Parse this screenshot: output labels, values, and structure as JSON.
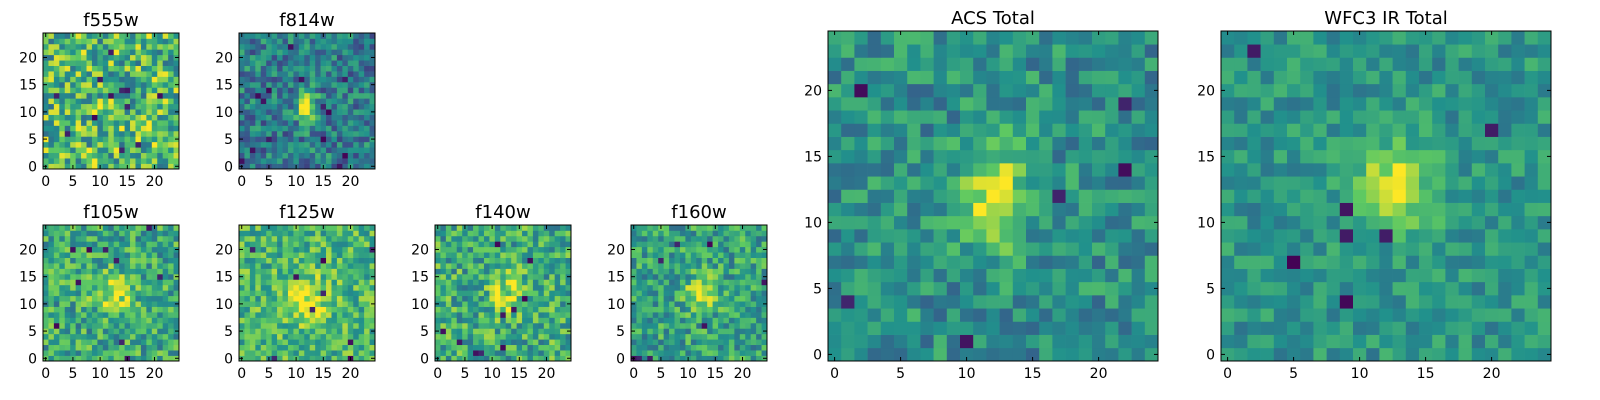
{
  "chart_data": [
    {
      "type": "heatmap",
      "id": "f555w",
      "title": "f555w",
      "grid_size": 25,
      "x_ticks": [
        "0",
        "5",
        "10",
        "15",
        "20"
      ],
      "y_ticks": [
        "0",
        "5",
        "10",
        "15",
        "20"
      ],
      "source": {
        "x": 12.0,
        "y": 11.0,
        "amp": 0.05,
        "sx": 2.0,
        "sy": 2.5
      },
      "base": 0.68,
      "noise": 0.32,
      "seed": 11,
      "dark_pixels": 12
    },
    {
      "type": "heatmap",
      "id": "f814w",
      "title": "f814w",
      "grid_size": 25,
      "x_ticks": [
        "0",
        "5",
        "10",
        "15",
        "20"
      ],
      "y_ticks": [
        "0",
        "5",
        "10",
        "15",
        "20"
      ],
      "source": {
        "x": 12.0,
        "y": 11.0,
        "amp": 0.6,
        "sx": 1.2,
        "sy": 2.0
      },
      "base": 0.42,
      "noise": 0.22,
      "seed": 22,
      "dark_pixels": 14
    },
    {
      "type": "heatmap",
      "id": "f105w",
      "title": "f105w",
      "grid_size": 25,
      "x_ticks": [
        "0",
        "5",
        "10",
        "15",
        "20"
      ],
      "y_ticks": [
        "0",
        "5",
        "10",
        "15",
        "20"
      ],
      "source": {
        "x": 12.5,
        "y": 12.0,
        "amp": 0.35,
        "sx": 2.5,
        "sy": 2.5
      },
      "base": 0.6,
      "noise": 0.24,
      "seed": 33,
      "dark_pixels": 10
    },
    {
      "type": "heatmap",
      "id": "f125w",
      "title": "f125w",
      "grid_size": 25,
      "x_ticks": [
        "0",
        "5",
        "10",
        "15",
        "20"
      ],
      "y_ticks": [
        "0",
        "5",
        "10",
        "15",
        "20"
      ],
      "source": {
        "x": 12.0,
        "y": 11.0,
        "amp": 0.3,
        "sx": 3.0,
        "sy": 3.0
      },
      "base": 0.66,
      "noise": 0.22,
      "seed": 44,
      "dark_pixels": 9
    },
    {
      "type": "heatmap",
      "id": "f140w",
      "title": "f140w",
      "grid_size": 25,
      "x_ticks": [
        "0",
        "5",
        "10",
        "15",
        "20"
      ],
      "y_ticks": [
        "0",
        "5",
        "10",
        "15",
        "20"
      ],
      "source": {
        "x": 13.0,
        "y": 12.0,
        "amp": 0.25,
        "sx": 2.5,
        "sy": 2.5
      },
      "base": 0.62,
      "noise": 0.25,
      "seed": 55,
      "dark_pixels": 10
    },
    {
      "type": "heatmap",
      "id": "f160w",
      "title": "f160w",
      "grid_size": 25,
      "x_ticks": [
        "0",
        "5",
        "10",
        "15",
        "20"
      ],
      "y_ticks": [
        "0",
        "5",
        "10",
        "15",
        "20"
      ],
      "source": {
        "x": 12.5,
        "y": 12.0,
        "amp": 0.45,
        "sx": 1.8,
        "sy": 2.0
      },
      "base": 0.58,
      "noise": 0.22,
      "seed": 66,
      "dark_pixels": 8
    },
    {
      "type": "heatmap",
      "id": "acs-total",
      "title": "ACS Total",
      "grid_size": 25,
      "x_ticks": [
        "0",
        "5",
        "10",
        "15",
        "20"
      ],
      "y_ticks": [
        "0",
        "5",
        "10",
        "15",
        "20"
      ],
      "source": {
        "x": 12.0,
        "y": 12.0,
        "amp": 0.45,
        "sx": 1.6,
        "sy": 3.0
      },
      "base": 0.5,
      "noise": 0.18,
      "seed": 77,
      "dark_pixels": 6
    },
    {
      "type": "heatmap",
      "id": "wfc3-ir-total",
      "title": "WFC3 IR Total",
      "grid_size": 25,
      "x_ticks": [
        "0",
        "5",
        "10",
        "15",
        "20"
      ],
      "y_ticks": [
        "0",
        "5",
        "10",
        "15",
        "20"
      ],
      "source": {
        "x": 12.5,
        "y": 12.5,
        "amp": 0.45,
        "sx": 2.2,
        "sy": 2.2
      },
      "base": 0.52,
      "noise": 0.14,
      "seed": 88,
      "dark_pixels": 7
    }
  ],
  "colormap": [
    "#440154",
    "#3b528b",
    "#21918c",
    "#5ec962",
    "#fde725"
  ]
}
